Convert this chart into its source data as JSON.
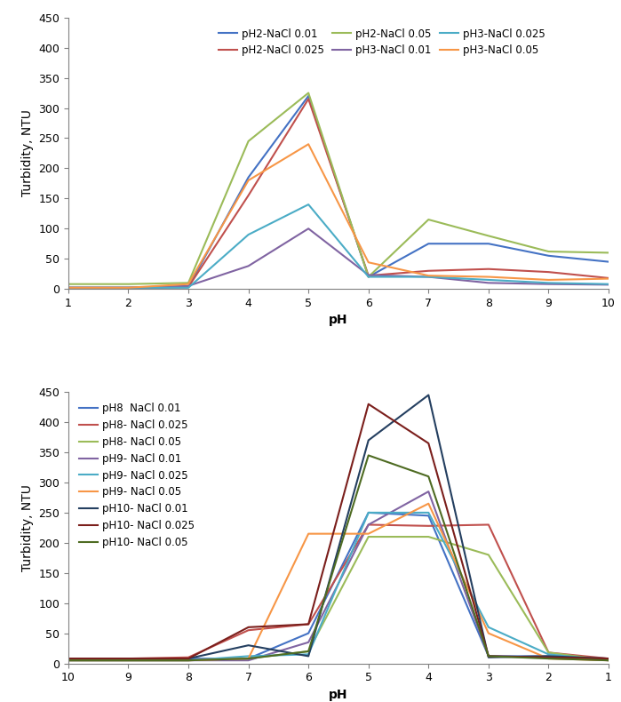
{
  "plot1": {
    "xlabel": "pH",
    "ylabel": "Turbidity, NTU",
    "xlim": [
      1,
      10
    ],
    "ylim": [
      0,
      450
    ],
    "yticks": [
      0,
      50,
      100,
      150,
      200,
      250,
      300,
      350,
      400,
      450
    ],
    "xticks": [
      1,
      2,
      3,
      4,
      5,
      6,
      7,
      8,
      9,
      10
    ],
    "series": [
      {
        "label": "pH2-NaCl 0.01",
        "color": "#4472C4",
        "x": [
          1,
          2,
          3,
          4,
          5,
          6,
          7,
          8,
          9,
          10
        ],
        "y": [
          2,
          2,
          3,
          185,
          320,
          20,
          75,
          75,
          55,
          45
        ]
      },
      {
        "label": "pH2-NaCl 0.025",
        "color": "#C0504D",
        "x": [
          1,
          2,
          3,
          4,
          5,
          6,
          7,
          8,
          9,
          10
        ],
        "y": [
          2,
          2,
          3,
          155,
          315,
          22,
          30,
          33,
          28,
          18
        ]
      },
      {
        "label": "pH2-NaCl 0.05",
        "color": "#9BBB59",
        "x": [
          1,
          2,
          3,
          4,
          5,
          6,
          7,
          8,
          9,
          10
        ],
        "y": [
          8,
          8,
          10,
          245,
          325,
          20,
          115,
          88,
          62,
          60
        ]
      },
      {
        "label": "pH3-NaCl 0.01",
        "color": "#8064A2",
        "x": [
          1,
          2,
          3,
          4,
          5,
          6,
          7,
          8,
          9,
          10
        ],
        "y": [
          2,
          2,
          5,
          38,
          100,
          23,
          20,
          10,
          8,
          7
        ]
      },
      {
        "label": "pH3-NaCl 0.025",
        "color": "#4BACC6",
        "x": [
          1,
          2,
          3,
          4,
          5,
          6,
          7,
          8,
          9,
          10
        ],
        "y": [
          2,
          2,
          2,
          90,
          140,
          20,
          20,
          15,
          10,
          8
        ]
      },
      {
        "label": "pH3-NaCl 0.05",
        "color": "#F79646",
        "x": [
          1,
          2,
          3,
          4,
          5,
          6,
          7,
          8,
          9,
          10
        ],
        "y": [
          2,
          2,
          8,
          180,
          240,
          44,
          22,
          20,
          15,
          17
        ]
      }
    ]
  },
  "plot2": {
    "xlabel": "pH",
    "ylabel": "Turbidity, NTU",
    "xlim": [
      10,
      1
    ],
    "ylim": [
      0,
      450
    ],
    "yticks": [
      0,
      50,
      100,
      150,
      200,
      250,
      300,
      350,
      400,
      450
    ],
    "xticks": [
      10,
      9,
      8,
      7,
      6,
      5,
      4,
      3,
      2,
      1
    ],
    "series": [
      {
        "label": "pH8  NaCl 0.01",
        "color": "#4472C4",
        "x": [
          10,
          9,
          8,
          7,
          6,
          5,
          4,
          3,
          2,
          1
        ],
        "y": [
          8,
          8,
          8,
          8,
          50,
          250,
          245,
          12,
          12,
          8
        ]
      },
      {
        "label": "pH8- NaCl 0.025",
        "color": "#C0504D",
        "x": [
          10,
          9,
          8,
          7,
          6,
          5,
          4,
          3,
          2,
          1
        ],
        "y": [
          8,
          8,
          10,
          55,
          65,
          230,
          228,
          230,
          18,
          8
        ]
      },
      {
        "label": "pH8- NaCl 0.05",
        "color": "#9BBB59",
        "x": [
          10,
          9,
          8,
          7,
          6,
          5,
          4,
          3,
          2,
          1
        ],
        "y": [
          5,
          5,
          5,
          8,
          20,
          210,
          210,
          180,
          18,
          5
        ]
      },
      {
        "label": "pH9- NaCl 0.01",
        "color": "#8064A2",
        "x": [
          10,
          9,
          8,
          7,
          6,
          5,
          4,
          3,
          2,
          1
        ],
        "y": [
          5,
          5,
          5,
          5,
          35,
          230,
          285,
          12,
          10,
          5
        ]
      },
      {
        "label": "pH9- NaCl 0.025",
        "color": "#4BACC6",
        "x": [
          10,
          9,
          8,
          7,
          6,
          5,
          4,
          3,
          2,
          1
        ],
        "y": [
          5,
          5,
          5,
          12,
          15,
          250,
          250,
          60,
          15,
          5
        ]
      },
      {
        "label": "pH9- NaCl 0.05",
        "color": "#F79646",
        "x": [
          10,
          9,
          8,
          7,
          6,
          5,
          4,
          3,
          2,
          1
        ],
        "y": [
          5,
          5,
          5,
          8,
          215,
          215,
          265,
          50,
          8,
          5
        ]
      },
      {
        "label": "pH10- NaCl 0.01",
        "color": "#243F60",
        "x": [
          10,
          9,
          8,
          7,
          6,
          5,
          4,
          3,
          2,
          1
        ],
        "y": [
          8,
          8,
          8,
          30,
          12,
          370,
          445,
          10,
          12,
          8
        ]
      },
      {
        "label": "pH10- NaCl 0.025",
        "color": "#7B1F1C",
        "x": [
          10,
          9,
          8,
          7,
          6,
          5,
          4,
          3,
          2,
          1
        ],
        "y": [
          8,
          8,
          8,
          60,
          65,
          430,
          365,
          12,
          10,
          8
        ]
      },
      {
        "label": "pH10- NaCl 0.05",
        "color": "#4E6B22",
        "x": [
          10,
          9,
          8,
          7,
          6,
          5,
          4,
          3,
          2,
          1
        ],
        "y": [
          5,
          5,
          5,
          8,
          20,
          345,
          310,
          12,
          8,
          5
        ]
      }
    ]
  },
  "background_color": "#ffffff",
  "linewidth": 1.5,
  "legend_fontsize": 8.5,
  "axis_label_fontsize": 10,
  "tick_fontsize": 9
}
